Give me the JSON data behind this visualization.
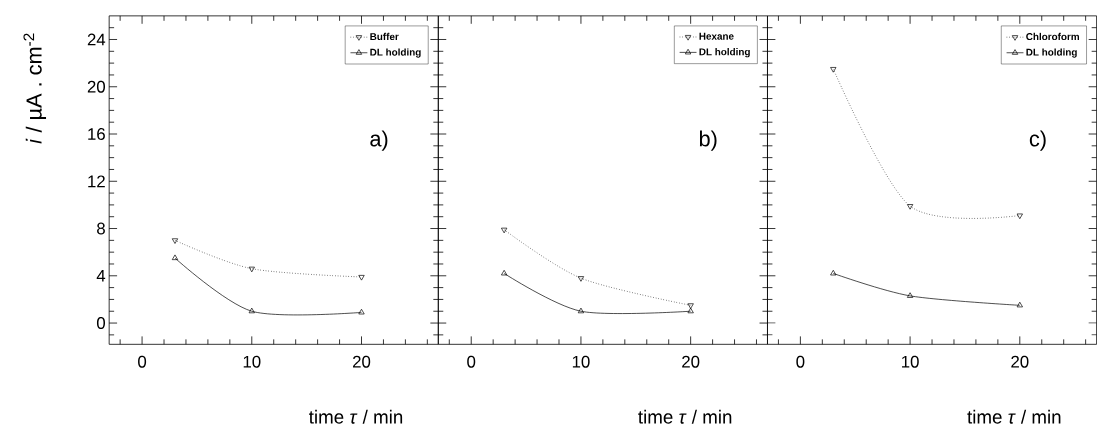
{
  "chart_data": [
    {
      "type": "line",
      "xlabel": "time *τ* / min",
      "ylabel": "*i* / µA . cm$^{-2}$",
      "xlim": [
        -3,
        27
      ],
      "ylim": [
        -1.8,
        26
      ],
      "xticks": [
        {
          "value": -2,
          "label": null
        },
        0,
        {
          "value": 2,
          "label": null
        },
        {
          "value": 4,
          "label": null
        },
        {
          "value": 6,
          "label": null
        },
        {
          "value": 8,
          "label": null
        },
        10,
        {
          "value": 12,
          "label": null
        },
        {
          "value": 14,
          "label": null
        },
        {
          "value": 16,
          "label": null
        },
        {
          "value": 18,
          "label": null
        },
        20,
        {
          "value": 22,
          "label": null
        },
        {
          "value": 24,
          "label": null
        },
        {
          "value": 26,
          "label": null
        }
      ],
      "yticks": [
        {
          "value": -1,
          "label": null
        },
        0,
        {
          "value": 1,
          "label": null
        },
        {
          "value": 2,
          "label": null
        },
        {
          "value": 3,
          "label": null
        },
        4,
        {
          "value": 5,
          "label": null
        },
        {
          "value": 6,
          "label": null
        },
        {
          "value": 7,
          "label": null
        },
        8,
        {
          "value": 9,
          "label": null
        },
        {
          "value": 10,
          "label": null
        },
        {
          "value": 11,
          "label": null
        },
        12,
        {
          "value": 13,
          "label": null
        },
        {
          "value": 14,
          "label": null
        },
        {
          "value": 15,
          "label": null
        },
        16,
        {
          "value": 17,
          "label": null
        },
        {
          "value": 18,
          "label": null
        },
        {
          "value": 19,
          "label": null
        },
        20,
        {
          "value": 21,
          "label": null
        },
        {
          "value": 22,
          "label": null
        },
        {
          "value": 23,
          "label": null
        },
        24,
        {
          "value": 25,
          "label": null
        }
      ],
      "legend": "top right",
      "annotations": [
        "a)"
      ],
      "series": [
        {
          "name": "Buffer",
          "color": "#000000",
          "x": [
            3,
            10,
            20
          ],
          "values": [
            7.0,
            4.6,
            3.9
          ],
          "marker": "triangle-down",
          "line_style": "dotted"
        },
        {
          "name": "DL holding",
          "color": "#000000",
          "x": [
            3,
            10,
            20
          ],
          "values": [
            5.5,
            1.0,
            0.9
          ],
          "marker": "triangle",
          "line_style": "solid"
        }
      ]
    },
    {
      "type": "line",
      "xlabel": "time *τ* / min",
      "xlim": [
        -3,
        27
      ],
      "ylim": [
        -1.8,
        26
      ],
      "xticks": [
        {
          "value": -2,
          "label": null
        },
        0,
        {
          "value": 2,
          "label": null
        },
        {
          "value": 4,
          "label": null
        },
        {
          "value": 6,
          "label": null
        },
        {
          "value": 8,
          "label": null
        },
        10,
        {
          "value": 12,
          "label": null
        },
        {
          "value": 14,
          "label": null
        },
        {
          "value": 16,
          "label": null
        },
        {
          "value": 18,
          "label": null
        },
        20,
        {
          "value": 22,
          "label": null
        },
        {
          "value": 24,
          "label": null
        },
        {
          "value": 26,
          "label": null
        }
      ],
      "yticks": [
        {
          "value": -1,
          "label": null
        },
        0,
        {
          "value": 1,
          "label": null
        },
        {
          "value": 2,
          "label": null
        },
        {
          "value": 3,
          "label": null
        },
        4,
        {
          "value": 5,
          "label": null
        },
        {
          "value": 6,
          "label": null
        },
        {
          "value": 7,
          "label": null
        },
        8,
        {
          "value": 9,
          "label": null
        },
        {
          "value": 10,
          "label": null
        },
        {
          "value": 11,
          "label": null
        },
        12,
        {
          "value": 13,
          "label": null
        },
        {
          "value": 14,
          "label": null
        },
        {
          "value": 15,
          "label": null
        },
        16,
        {
          "value": 17,
          "label": null
        },
        {
          "value": 18,
          "label": null
        },
        {
          "value": 19,
          "label": null
        },
        20,
        {
          "value": 21,
          "label": null
        },
        {
          "value": 22,
          "label": null
        },
        {
          "value": 23,
          "label": null
        },
        24,
        {
          "value": 25,
          "label": null
        }
      ],
      "tick_labels": "x",
      "legend": "top right",
      "annotations": [
        "b)"
      ],
      "series": [
        {
          "name": "Hexane",
          "color": "#000000",
          "x": [
            3,
            10,
            20
          ],
          "values": [
            7.9,
            3.8,
            1.5
          ],
          "marker": "triangle-down",
          "line_style": "dotted"
        },
        {
          "name": "DL holding",
          "color": "#000000",
          "x": [
            3,
            10,
            20
          ],
          "values": [
            4.2,
            1.0,
            1.0
          ],
          "marker": "triangle",
          "line_style": "solid"
        }
      ]
    },
    {
      "type": "line",
      "xlabel": "time *τ* / min",
      "xlim": [
        -3,
        27
      ],
      "ylim": [
        -1.8,
        26
      ],
      "xticks": [
        {
          "value": -2,
          "label": null
        },
        0,
        {
          "value": 2,
          "label": null
        },
        {
          "value": 4,
          "label": null
        },
        {
          "value": 6,
          "label": null
        },
        {
          "value": 8,
          "label": null
        },
        10,
        {
          "value": 12,
          "label": null
        },
        {
          "value": 14,
          "label": null
        },
        {
          "value": 16,
          "label": null
        },
        {
          "value": 18,
          "label": null
        },
        20,
        {
          "value": 22,
          "label": null
        },
        {
          "value": 24,
          "label": null
        },
        {
          "value": 26,
          "label": null
        }
      ],
      "yticks": [
        {
          "value": -1,
          "label": null
        },
        0,
        {
          "value": 1,
          "label": null
        },
        {
          "value": 2,
          "label": null
        },
        {
          "value": 3,
          "label": null
        },
        4,
        {
          "value": 5,
          "label": null
        },
        {
          "value": 6,
          "label": null
        },
        {
          "value": 7,
          "label": null
        },
        8,
        {
          "value": 9,
          "label": null
        },
        {
          "value": 10,
          "label": null
        },
        {
          "value": 11,
          "label": null
        },
        12,
        {
          "value": 13,
          "label": null
        },
        {
          "value": 14,
          "label": null
        },
        {
          "value": 15,
          "label": null
        },
        16,
        {
          "value": 17,
          "label": null
        },
        {
          "value": 18,
          "label": null
        },
        {
          "value": 19,
          "label": null
        },
        20,
        {
          "value": 21,
          "label": null
        },
        {
          "value": 22,
          "label": null
        },
        {
          "value": 23,
          "label": null
        },
        24,
        {
          "value": 25,
          "label": null
        }
      ],
      "tick_labels": "x",
      "legend": "top right",
      "annotations": [
        "c)"
      ],
      "series": [
        {
          "name": "Chloroform",
          "color": "#000000",
          "x": [
            3,
            10,
            20
          ],
          "values": [
            21.5,
            9.9,
            9.1
          ],
          "marker": "triangle-down",
          "line_style": "dotted"
        },
        {
          "name": "DL holding",
          "color": "#000000",
          "x": [
            3,
            10,
            20
          ],
          "values": [
            4.2,
            2.3,
            1.5
          ],
          "marker": "triangle",
          "line_style": "solid"
        }
      ]
    }
  ]
}
